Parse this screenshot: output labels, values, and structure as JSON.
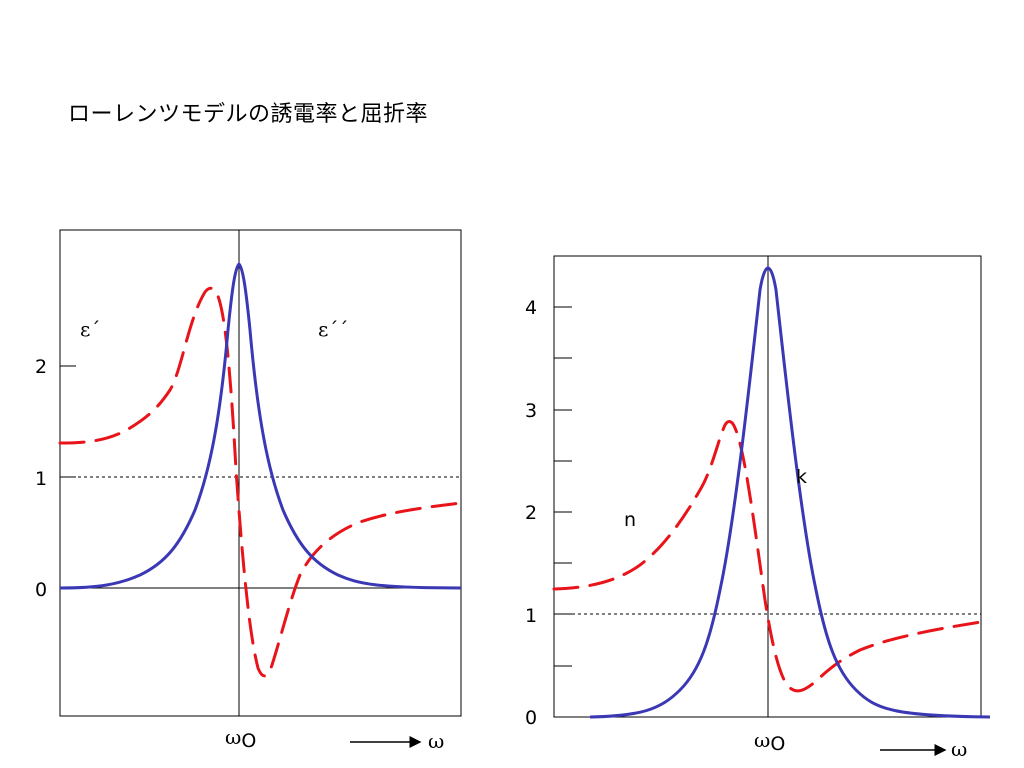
{
  "title": "ローレンツモデルの誘電率と屈折率",
  "colors": {
    "red_curve": "#e8141a",
    "blue_curve": "#3a38b4"
  },
  "chart_data": [
    {
      "type": "line",
      "title": "",
      "x_marker": "ω0",
      "xlabel": "ω",
      "y_ticks": [
        "0",
        "1",
        "2"
      ],
      "x_ticks": [],
      "reference_line": {
        "y": 1,
        "style": "dashed"
      },
      "series": [
        {
          "name": "ε´",
          "style": "dashed",
          "color": "red",
          "x": [
            -1.0,
            -0.6,
            -0.4,
            -0.2,
            -0.1,
            0.0,
            0.05,
            0.15,
            0.3,
            0.6,
            1.0
          ],
          "y": [
            1.3,
            1.5,
            1.8,
            2.4,
            2.65,
            1.0,
            -0.2,
            -0.7,
            0.3,
            0.65,
            0.78
          ]
        },
        {
          "name": "ε´´",
          "style": "solid",
          "color": "blue",
          "x": [
            -1.0,
            -0.6,
            -0.3,
            -0.15,
            -0.05,
            0.0,
            0.05,
            0.15,
            0.3,
            0.6,
            1.0
          ],
          "y": [
            0.0,
            0.05,
            0.4,
            1.2,
            2.5,
            2.9,
            2.5,
            1.2,
            0.4,
            0.05,
            0.0
          ]
        }
      ],
      "labels": {
        "eps1": "ε´",
        "eps2": "ε´´",
        "omega0": "ω",
        "omega0_sub": "O",
        "arrow_label": "ω"
      }
    },
    {
      "type": "line",
      "title": "",
      "x_marker": "ω0",
      "xlabel": "ω",
      "y_ticks": [
        "0",
        "1",
        "2",
        "3",
        "4"
      ],
      "reference_line": {
        "y": 1,
        "style": "dashed"
      },
      "series": [
        {
          "name": "n",
          "style": "dashed",
          "color": "red",
          "x": [
            -1.0,
            -0.6,
            -0.4,
            -0.2,
            -0.1,
            0.0,
            0.05,
            0.15,
            0.3,
            0.6,
            1.0
          ],
          "y": [
            1.25,
            1.45,
            1.8,
            2.5,
            2.85,
            1.0,
            0.4,
            0.25,
            0.55,
            0.75,
            0.92
          ]
        },
        {
          "name": "k",
          "style": "solid",
          "color": "blue",
          "x": [
            -0.8,
            -0.5,
            -0.2,
            -0.1,
            0.0,
            0.1,
            0.2,
            0.5,
            1.0
          ],
          "y": [
            0.0,
            0.05,
            0.6,
            2.0,
            4.4,
            2.0,
            0.6,
            0.05,
            0.0
          ]
        }
      ],
      "labels": {
        "n": "n",
        "k": "k",
        "omega0": "ω",
        "omega0_sub": "O",
        "arrow_label": "ω"
      }
    }
  ]
}
